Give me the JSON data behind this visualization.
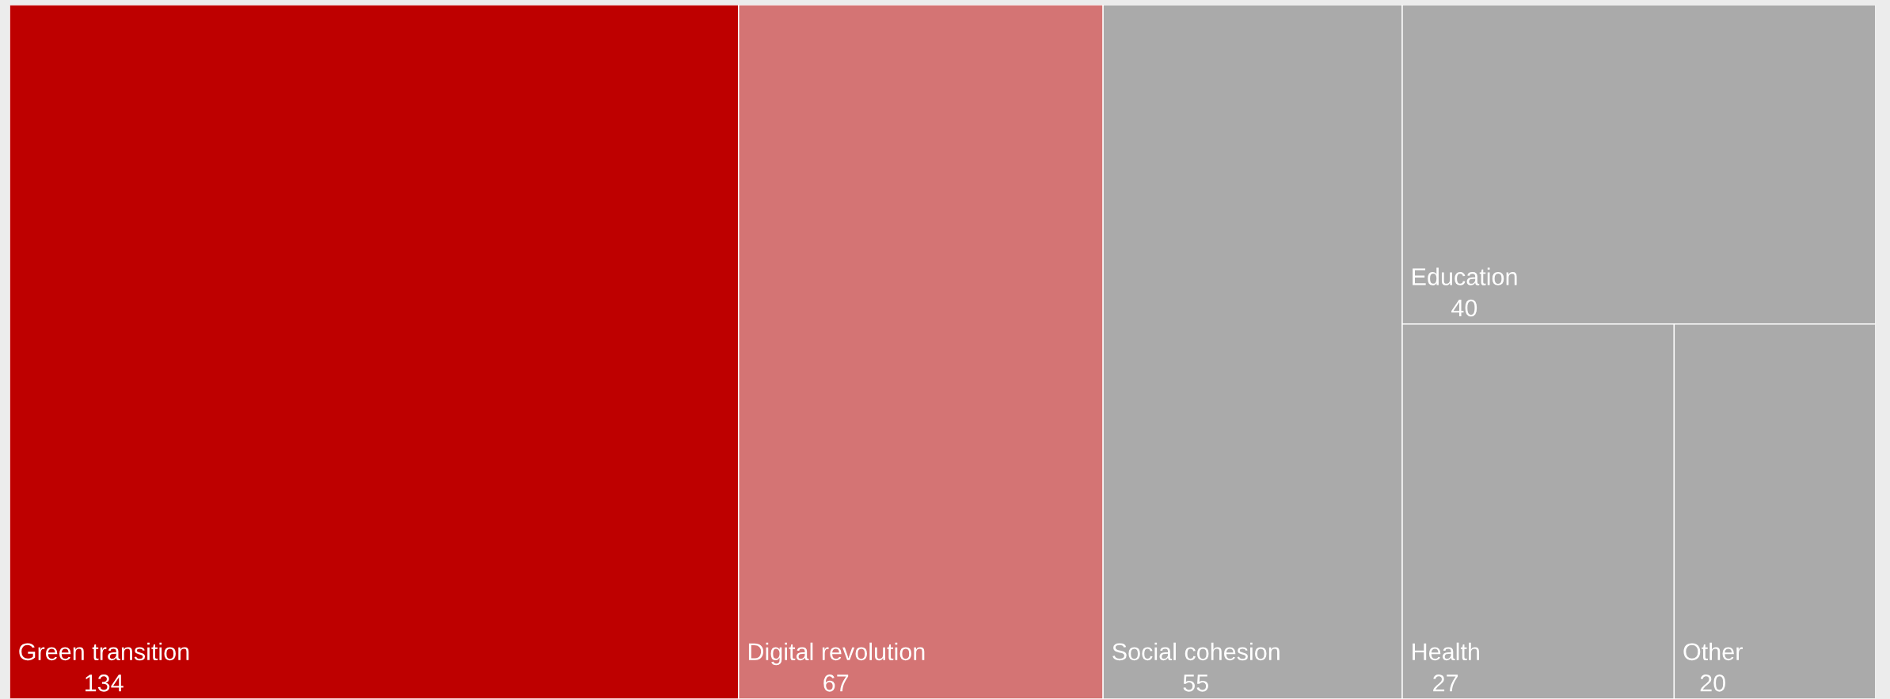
{
  "chart_data": {
    "type": "other",
    "categories": [
      "Green transition",
      "Digital revolution",
      "Social cohesion",
      "Education",
      "Health",
      "Other"
    ],
    "values": [
      134,
      67,
      55,
      40,
      27,
      20
    ],
    "colors": [
      "#be0000",
      "#d47474",
      "#aaaaaa",
      "#aaaaaa",
      "#aaaaaa",
      "#aaaaaa"
    ],
    "data_labels": true
  }
}
